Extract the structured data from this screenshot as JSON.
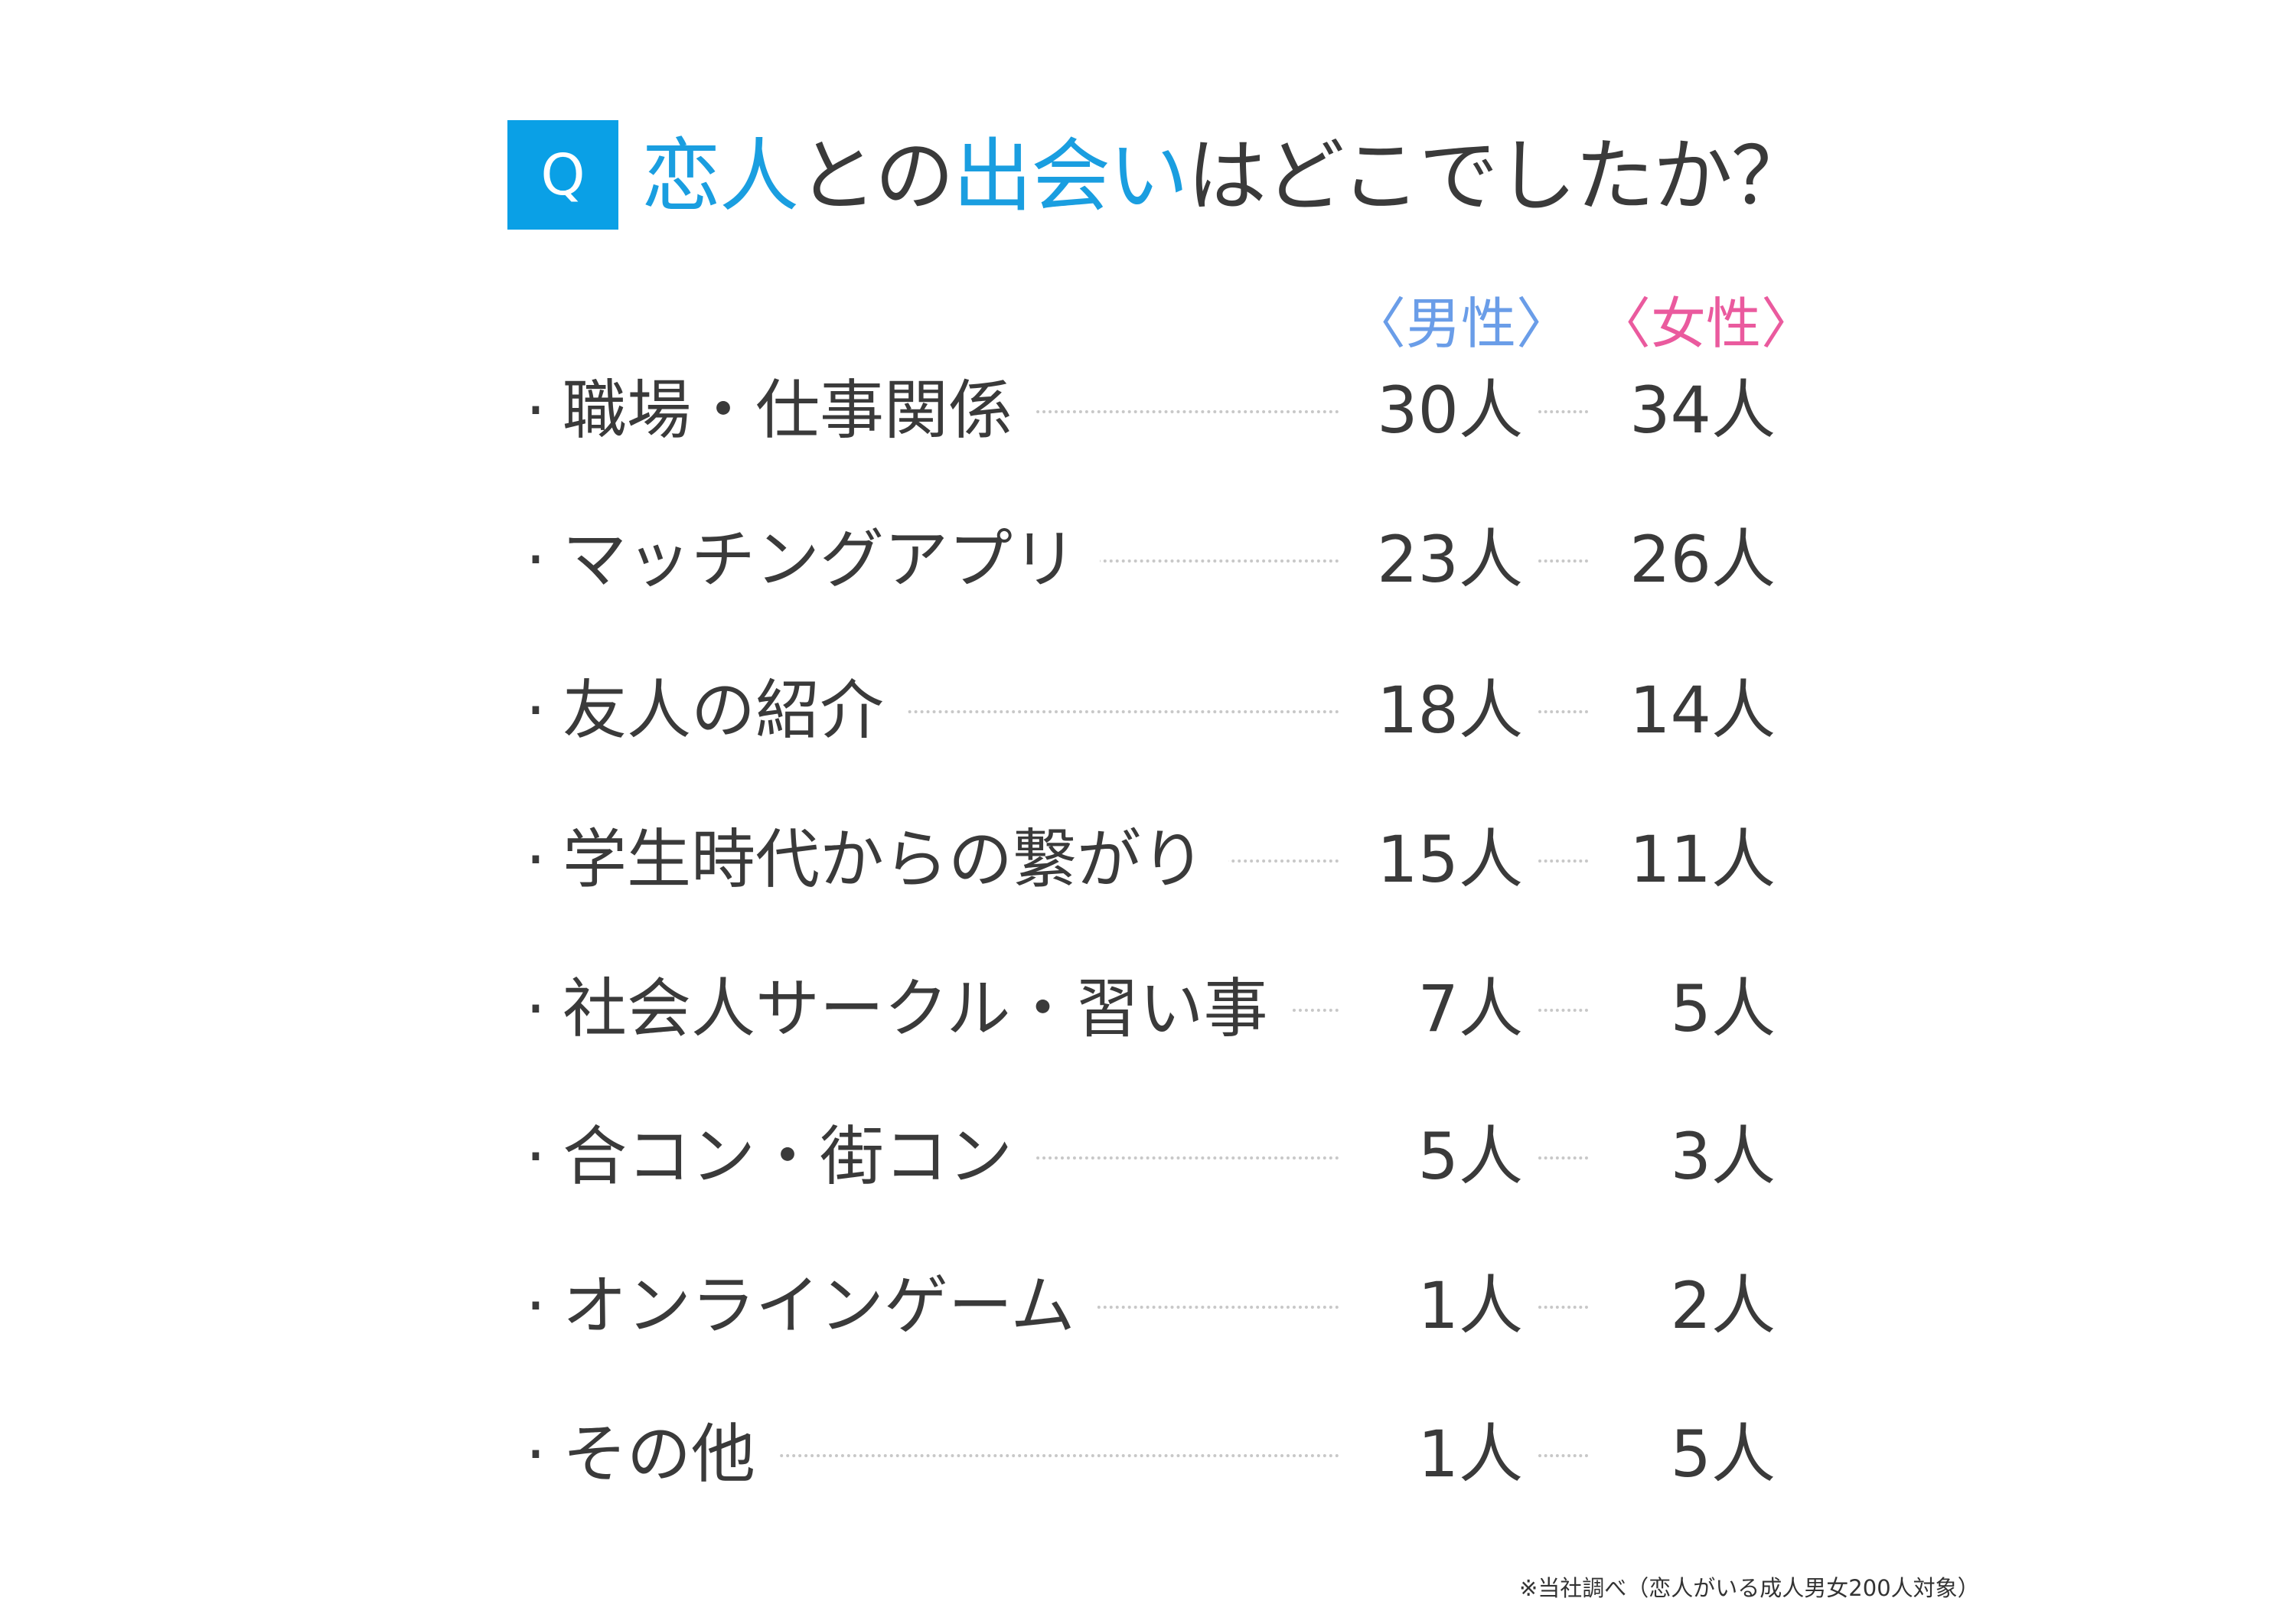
{
  "title": {
    "q_badge": "Q",
    "parts": [
      "恋人",
      "との",
      "出会い",
      "はどこでしたか？"
    ]
  },
  "headers": {
    "men": "〈男性〉",
    "women": "〈女性〉"
  },
  "colors": {
    "accent": "#0aa0e6",
    "men": "#6a9de8",
    "women": "#ea5a9e"
  },
  "rows": [
    {
      "bullet": "·",
      "label": "職場・仕事関係",
      "men": "30人",
      "women": "34人"
    },
    {
      "bullet": "·",
      "label": "マッチングアプリ",
      "men": "23人",
      "women": "26人"
    },
    {
      "bullet": "·",
      "label": "友人の紹介",
      "men": "18人",
      "women": "14人"
    },
    {
      "bullet": "·",
      "label": "学生時代からの繋がり",
      "men": "15人",
      "women": "11人"
    },
    {
      "bullet": "·",
      "label": "社会人サークル・習い事",
      "men": "7人",
      "women": "5人"
    },
    {
      "bullet": "·",
      "label": "合コン・街コン",
      "men": "5人",
      "women": "3人"
    },
    {
      "bullet": "·",
      "label": "オンラインゲーム",
      "men": "1人",
      "women": "2人"
    },
    {
      "bullet": "·",
      "label": "その他",
      "men": "1人",
      "women": "5人"
    }
  ],
  "footnote": "※当社調べ（恋人がいる成人男女200人対象）"
}
